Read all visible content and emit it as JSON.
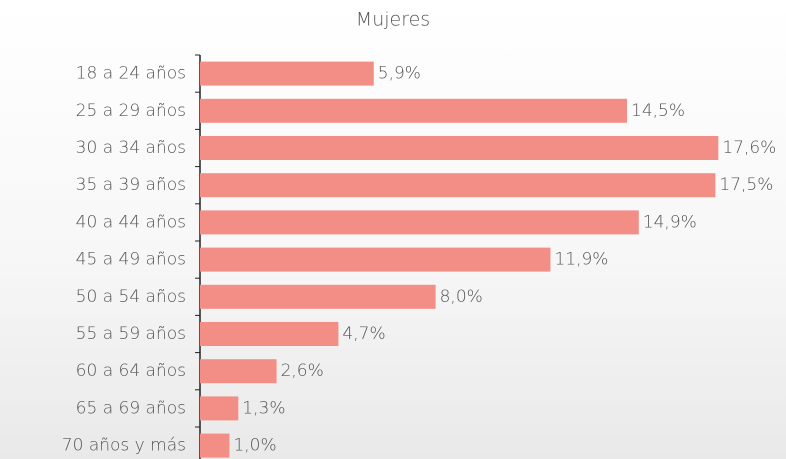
{
  "chart_data": {
    "type": "bar",
    "orientation": "horizontal",
    "title": "Mujeres",
    "categories": [
      "18 a 24 años",
      "25 a 29 años",
      "30 a 34 años",
      "35 a 39 años",
      "40 a 44 años",
      "45 a 49 años",
      "50 a 54 años",
      "55 a 59 años",
      "60 a 64 años",
      "65 a 69 años",
      "70 años y más"
    ],
    "values": [
      5.9,
      14.5,
      17.6,
      17.5,
      14.9,
      11.9,
      8.0,
      4.7,
      2.6,
      1.3,
      1.0
    ],
    "value_labels": [
      "5,9%",
      "14,5%",
      "17,6%",
      "17,5%",
      "14,9%",
      "11,9%",
      "8,0%",
      "4,7%",
      "2,6%",
      "1,3%",
      "1,0%"
    ],
    "color": "#f28e86"
  }
}
